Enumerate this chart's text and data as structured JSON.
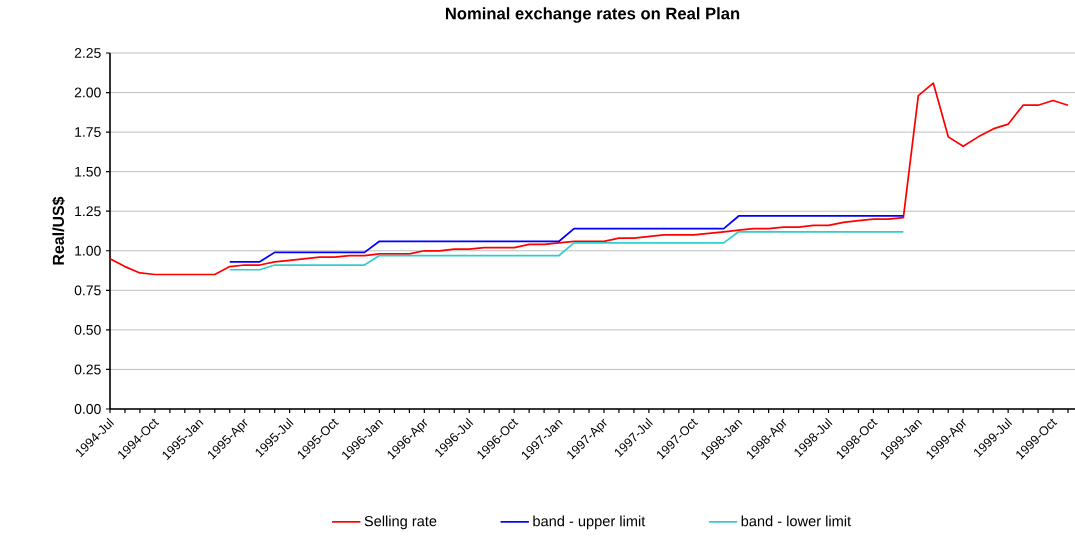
{
  "chart_data": {
    "type": "line",
    "title": "Nominal exchange rates on Real Plan",
    "ylabel": "Real/US$",
    "categories": [
      "1994-Jul",
      null,
      null,
      "1994-Oct",
      null,
      null,
      "1995-Jan",
      null,
      null,
      "1995-Apr",
      null,
      null,
      "1995-Jul",
      null,
      null,
      "1995-Oct",
      null,
      null,
      "1996-Jan",
      null,
      null,
      "1996-Apr",
      null,
      null,
      "1996-Jul",
      null,
      null,
      "1996-Oct",
      null,
      null,
      "1997-Jan",
      null,
      null,
      "1997-Apr",
      null,
      null,
      "1997-Jul",
      null,
      null,
      "1997-Oct",
      null,
      null,
      "1998-Jan",
      null,
      null,
      "1998-Apr",
      null,
      null,
      "1998-Jul",
      null,
      null,
      "1998-Oct",
      null,
      null,
      "1999-Jan",
      null,
      null,
      "1999-Apr",
      null,
      null,
      "1999-Jul",
      null,
      null,
      "1999-Oct",
      null
    ],
    "series": [
      {
        "name": "Selling rate",
        "color": "#ff0000",
        "values": [
          0.95,
          0.9,
          0.86,
          0.85,
          0.85,
          0.85,
          0.85,
          0.85,
          0.9,
          0.91,
          0.91,
          0.93,
          0.94,
          0.95,
          0.96,
          0.96,
          0.97,
          0.97,
          0.98,
          0.98,
          0.98,
          1.0,
          1.0,
          1.01,
          1.01,
          1.02,
          1.02,
          1.02,
          1.04,
          1.04,
          1.05,
          1.06,
          1.06,
          1.06,
          1.08,
          1.08,
          1.09,
          1.1,
          1.1,
          1.1,
          1.11,
          1.12,
          1.13,
          1.14,
          1.14,
          1.15,
          1.15,
          1.16,
          1.16,
          1.18,
          1.19,
          1.2,
          1.2,
          1.21,
          1.98,
          2.06,
          1.72,
          1.66,
          1.72,
          1.77,
          1.8,
          1.92,
          1.92,
          1.95,
          1.92
        ]
      },
      {
        "name": "band - upper limit",
        "color": "#0000ff",
        "values": [
          null,
          null,
          null,
          null,
          null,
          null,
          null,
          null,
          0.93,
          0.93,
          0.93,
          0.99,
          0.99,
          0.99,
          0.99,
          0.99,
          0.99,
          0.99,
          1.06,
          1.06,
          1.06,
          1.06,
          1.06,
          1.06,
          1.06,
          1.06,
          1.06,
          1.06,
          1.06,
          1.06,
          1.06,
          1.14,
          1.14,
          1.14,
          1.14,
          1.14,
          1.14,
          1.14,
          1.14,
          1.14,
          1.14,
          1.14,
          1.22,
          1.22,
          1.22,
          1.22,
          1.22,
          1.22,
          1.22,
          1.22,
          1.22,
          1.22,
          1.22,
          1.22,
          null,
          null,
          null,
          null,
          null,
          null,
          null,
          null,
          null,
          null,
          null
        ]
      },
      {
        "name": "band - lower limit",
        "color": "#33cccc",
        "values": [
          null,
          null,
          null,
          null,
          null,
          null,
          null,
          null,
          0.88,
          0.88,
          0.88,
          0.91,
          0.91,
          0.91,
          0.91,
          0.91,
          0.91,
          0.91,
          0.97,
          0.97,
          0.97,
          0.97,
          0.97,
          0.97,
          0.97,
          0.97,
          0.97,
          0.97,
          0.97,
          0.97,
          0.97,
          1.05,
          1.05,
          1.05,
          1.05,
          1.05,
          1.05,
          1.05,
          1.05,
          1.05,
          1.05,
          1.05,
          1.12,
          1.12,
          1.12,
          1.12,
          1.12,
          1.12,
          1.12,
          1.12,
          1.12,
          1.12,
          1.12,
          1.12,
          null,
          null,
          null,
          null,
          null,
          null,
          null,
          null,
          null,
          null,
          null
        ]
      }
    ],
    "ylim": [
      0,
      2.25
    ],
    "yticks": [
      {
        "value": 0,
        "label": "0.00"
      },
      {
        "value": 0.25,
        "label": "0.25"
      },
      {
        "value": 0.5,
        "label": "0.50"
      },
      {
        "value": 0.75,
        "label": "0.75"
      },
      {
        "value": 1,
        "label": "1.00"
      },
      {
        "value": 1.25,
        "label": "1.25"
      },
      {
        "value": 1.5,
        "label": "1.50"
      },
      {
        "value": 1.75,
        "label": "1.75"
      },
      {
        "value": 2,
        "label": "2.00"
      },
      {
        "value": 2.25,
        "label": "2.25"
      }
    ],
    "grid": "y",
    "legend": "bottom",
    "marker": "none",
    "line_style": "solid"
  }
}
